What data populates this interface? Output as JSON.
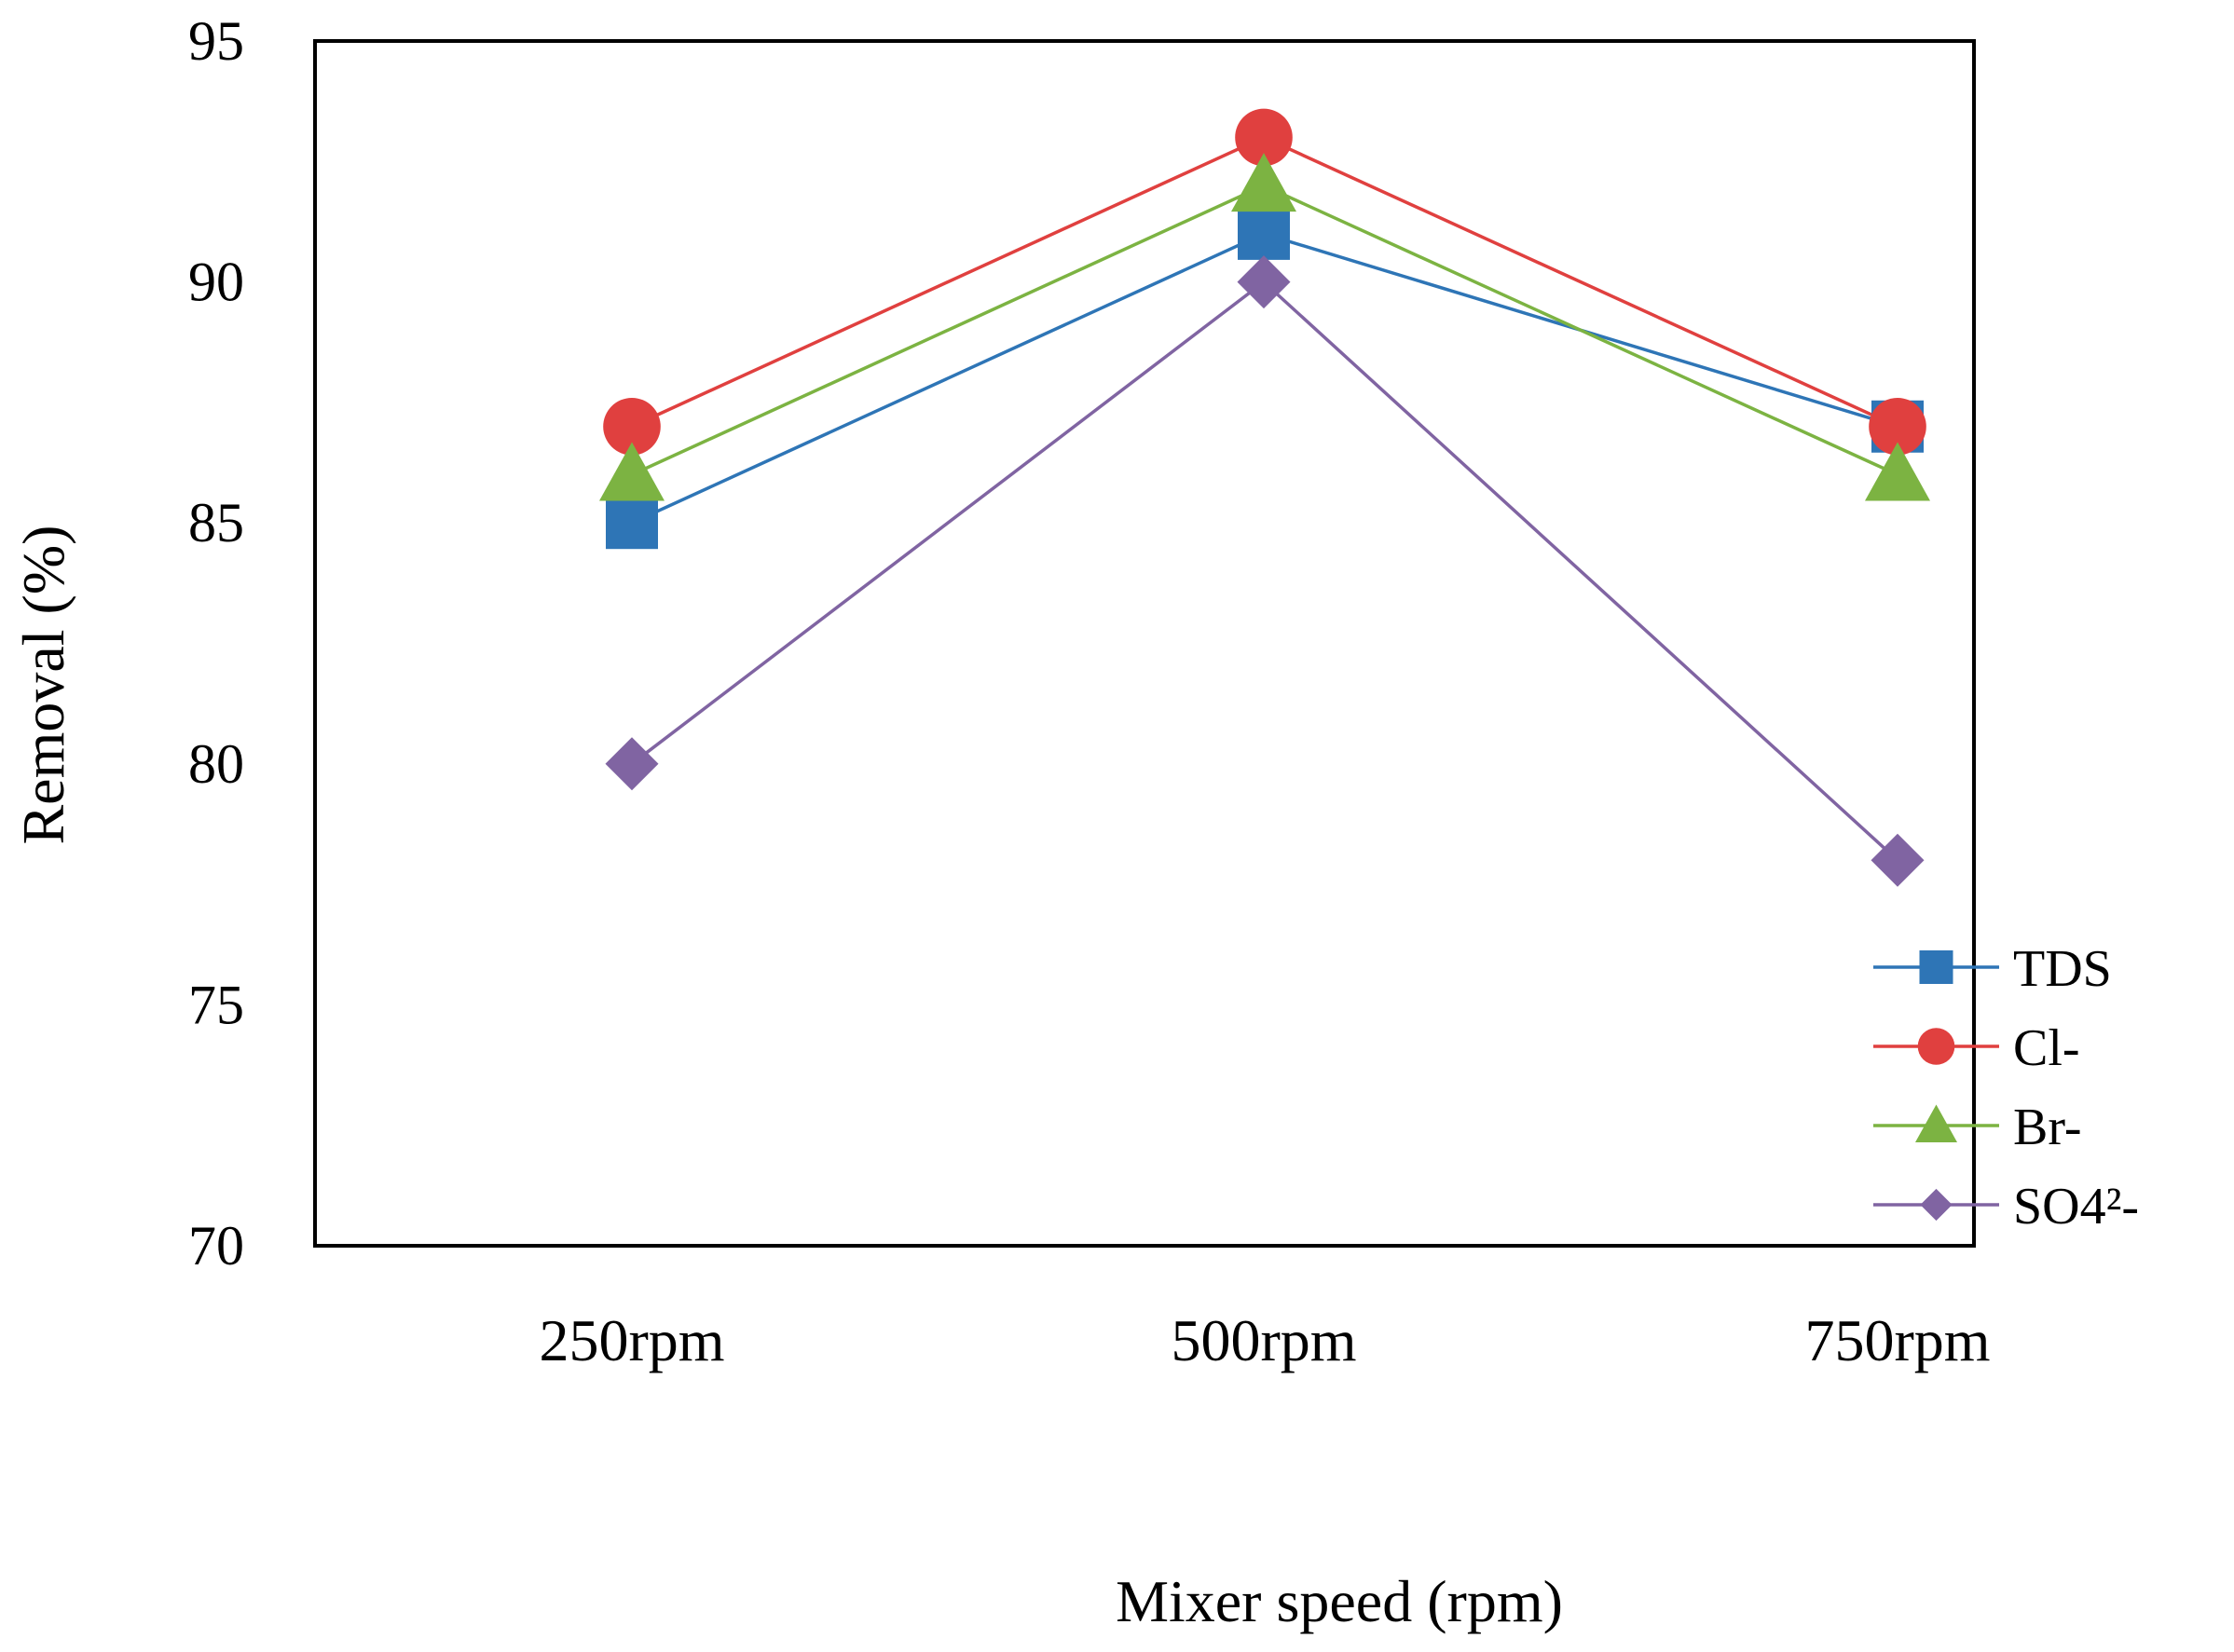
{
  "chart_data": {
    "type": "line",
    "title": "",
    "xlabel": "Mixer speed (rpm)",
    "ylabel": "Removal (%)",
    "categories": [
      "250rpm",
      "500rpm",
      "750rpm"
    ],
    "ylim": [
      70,
      95
    ],
    "yticks": [
      70,
      75,
      80,
      85,
      90,
      95
    ],
    "grid": false,
    "legend_position": "bottom-right",
    "series": [
      {
        "name": "TDS",
        "values": [
          85,
          91,
          87
        ],
        "color": "#2E75B6",
        "marker": "square"
      },
      {
        "name": "Cl-",
        "values": [
          87,
          93,
          87
        ],
        "color": "#E0403F",
        "marker": "circle"
      },
      {
        "name": "Br-",
        "values": [
          86,
          92,
          86
        ],
        "color": "#7CB342",
        "marker": "triangle"
      },
      {
        "name": "SO4²-",
        "values": [
          80,
          90,
          78
        ],
        "color": "#8064A2",
        "marker": "diamond"
      }
    ]
  }
}
